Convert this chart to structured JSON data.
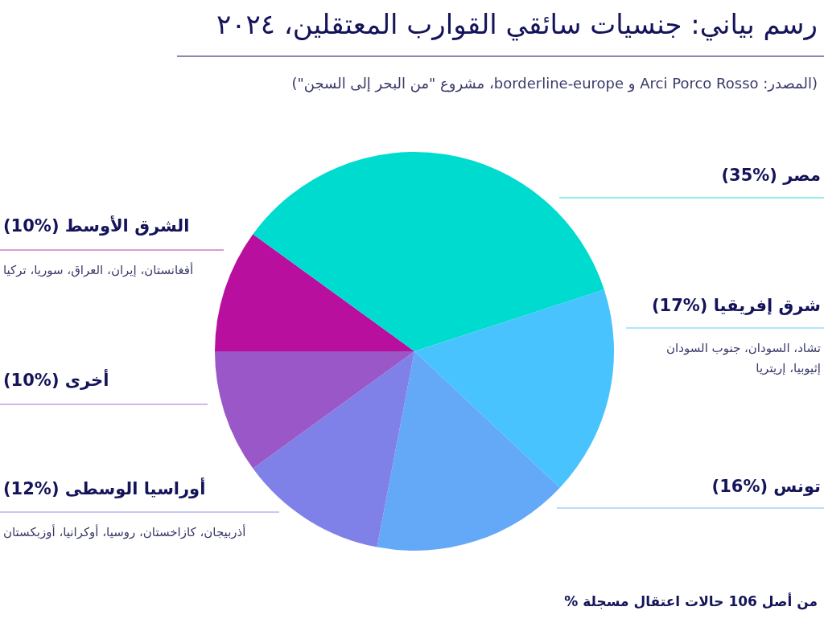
{
  "chart_data": {
    "type": "pie",
    "title": "رسم بياني: جنسيات سائقي القوارب المعتقلين، ٢٠٢٤",
    "subtitle": "(المصدر: Arci Porco Rosso و borderline-europe، مشروع \"من البحر إلى السجن\")",
    "categories": [
      "الشرق الأوسط",
      "مصر",
      "شرق إفريقيا",
      "تونس",
      "أوراسيا الوسطى",
      "أخرى"
    ],
    "values": [
      10,
      35,
      17,
      16,
      12,
      10
    ],
    "value_labels": [
      "(%10)",
      "(%35)",
      "(%17)",
      "(%16)",
      "(%12)",
      "(%10)"
    ],
    "colors": [
      "#b90f9e",
      "#00dbd0",
      "#48c3fd",
      "#64a8f8",
      "#7f80e8",
      "#9957c8"
    ],
    "annotations": [
      "أفغانستان، إيران، العراق، سوريا، تركيا",
      "تشاد، السودان، جنوب السودان إثيوبيا، إريتريا",
      "أذربيجان، كازاخستان، روسيا، أوكرانيا، أوزبكستان",
      "من أصل 106 حالات اعتقال مسجلة %"
    ]
  }
}
